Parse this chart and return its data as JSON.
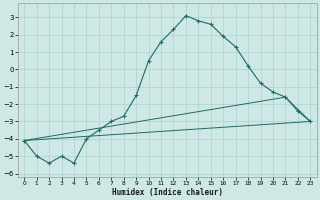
{
  "xlabel": "Humidex (Indice chaleur)",
  "background_color": "#cde8e5",
  "grid_color": "#aed0cd",
  "line_color": "#1e6b65",
  "xlim": [
    -0.5,
    23.5
  ],
  "ylim": [
    -6.2,
    3.8
  ],
  "yticks": [
    -6,
    -5,
    -4,
    -3,
    -2,
    -1,
    0,
    1,
    2,
    3
  ],
  "xticks": [
    0,
    1,
    2,
    3,
    4,
    5,
    6,
    7,
    8,
    9,
    10,
    11,
    12,
    13,
    14,
    15,
    16,
    17,
    18,
    19,
    20,
    21,
    22,
    23
  ],
  "curve1_x": [
    0,
    1,
    2,
    3,
    4,
    5,
    6,
    7,
    8,
    9,
    10,
    11,
    12,
    13,
    14,
    15,
    16,
    17,
    18,
    19,
    20,
    21,
    22,
    23
  ],
  "curve1_y": [
    -4.1,
    -5.0,
    -5.4,
    -5.0,
    -5.4,
    -4.0,
    -3.5,
    -3.0,
    -2.7,
    -1.5,
    0.5,
    1.6,
    2.3,
    3.1,
    2.8,
    2.6,
    1.9,
    1.3,
    0.2,
    -0.8,
    -1.3,
    -1.6,
    -2.4,
    -3.0
  ],
  "line2_x": [
    0,
    23
  ],
  "line2_y": [
    -4.1,
    -3.0
  ],
  "line3_x": [
    0,
    21,
    23
  ],
  "line3_y": [
    -4.1,
    -1.6,
    -3.0
  ]
}
